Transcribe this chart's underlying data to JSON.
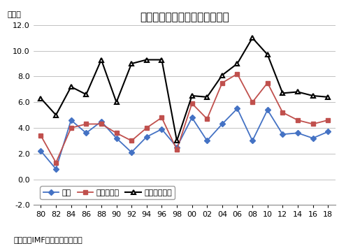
{
  "title": "世界・新興国・アジアの成長率",
  "ylabel": "（％）",
  "source_text": "（出所）IMFより大和総研作成",
  "legend_world": "世界",
  "legend_emerging": "新興国全体",
  "legend_asia": "アジア新興国",
  "years": [
    1980,
    1982,
    1984,
    1986,
    1988,
    1990,
    1992,
    1994,
    1996,
    1998,
    2000,
    2002,
    2004,
    2006,
    2008,
    2010,
    2012,
    2014,
    2016,
    2018
  ],
  "world": [
    2.2,
    0.8,
    4.6,
    3.6,
    4.5,
    3.2,
    2.1,
    3.3,
    3.9,
    2.5,
    4.8,
    3.0,
    4.3,
    5.5,
    3.0,
    5.4,
    3.5,
    3.6,
    3.2,
    3.7
  ],
  "emerging": [
    3.4,
    1.3,
    4.0,
    4.3,
    4.3,
    3.6,
    3.0,
    4.0,
    4.8,
    2.3,
    5.9,
    4.7,
    7.5,
    8.2,
    6.0,
    7.5,
    5.2,
    4.6,
    4.3,
    4.6
  ],
  "asia": [
    6.3,
    5.0,
    7.2,
    6.6,
    9.3,
    6.0,
    9.0,
    9.3,
    9.3,
    3.0,
    6.5,
    6.4,
    8.1,
    9.0,
    11.0,
    9.7,
    6.7,
    6.8,
    6.5,
    6.4
  ],
  "world_color": "#4472C4",
  "emerging_color": "#C0504D",
  "asia_color": "#000000",
  "ylim": [
    -2.0,
    12.0
  ],
  "yticks": [
    -2.0,
    0.0,
    2.0,
    4.0,
    6.0,
    8.0,
    10.0,
    12.0
  ],
  "background_color": "#FFFFFF",
  "grid_color": "#AAAAAA"
}
